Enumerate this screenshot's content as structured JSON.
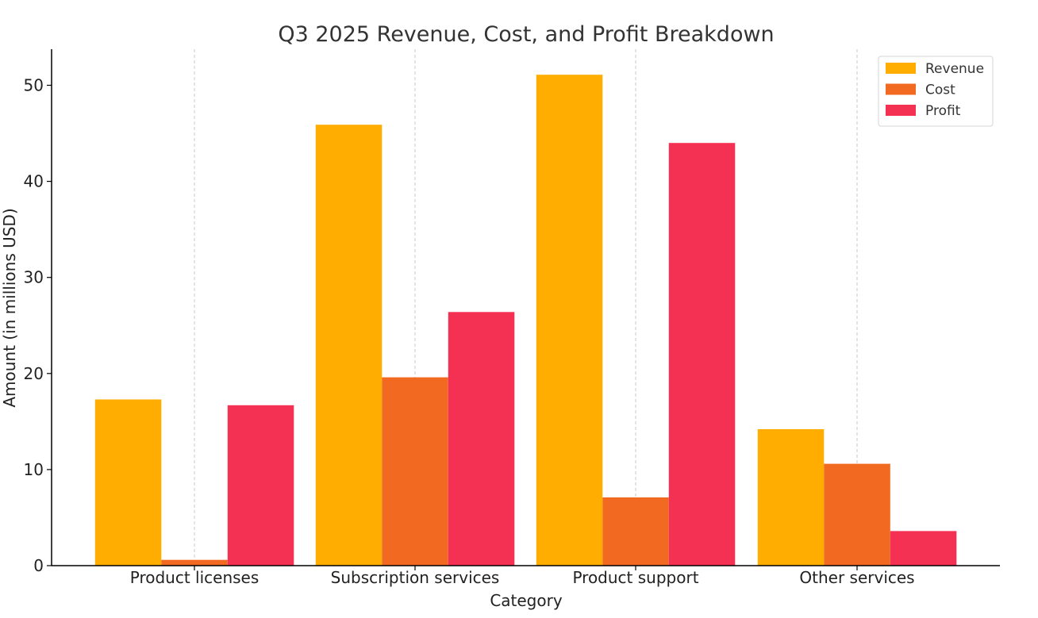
{
  "chart_data": {
    "type": "bar",
    "title": "Q3 2025 Revenue, Cost, and Profit Breakdown",
    "xlabel": "Category",
    "ylabel": "Amount (in millions USD)",
    "categories": [
      "Product licenses",
      "Subscription services",
      "Product support",
      "Other services"
    ],
    "series": [
      {
        "name": "Revenue",
        "color": "#ffad00",
        "values": [
          17.3,
          45.9,
          51.1,
          14.2
        ]
      },
      {
        "name": "Cost",
        "color": "#f26a21",
        "values": [
          0.6,
          19.6,
          7.1,
          10.6
        ]
      },
      {
        "name": "Profit",
        "color": "#f43153",
        "values": [
          16.7,
          26.4,
          44.0,
          3.6
        ]
      }
    ],
    "ylim": [
      0,
      53.5
    ],
    "yticks": [
      0,
      10,
      20,
      30,
      40,
      50
    ],
    "grid": "vertical dashed at categories",
    "legend_position": "top-right"
  }
}
